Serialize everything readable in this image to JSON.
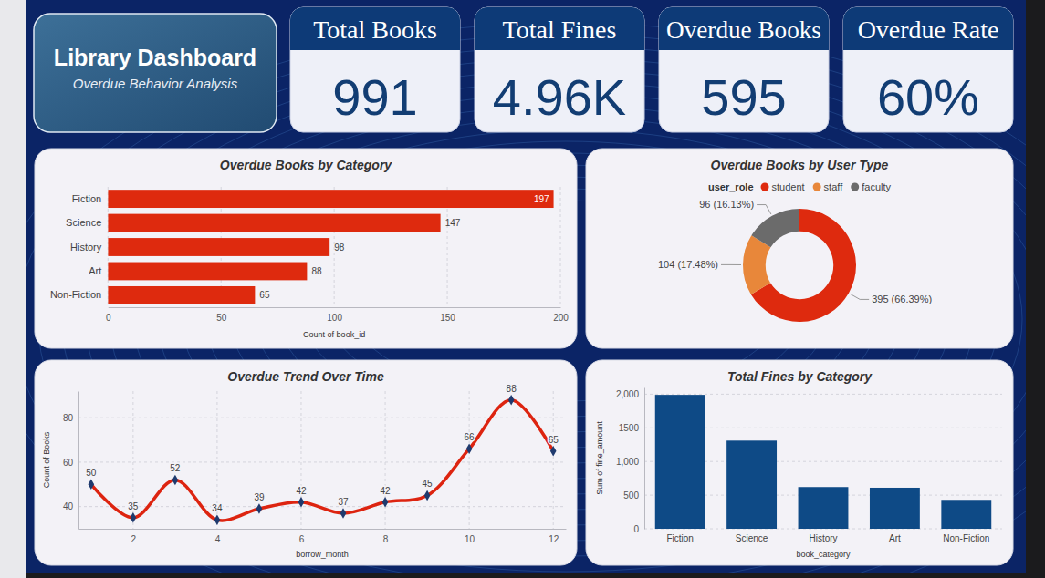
{
  "header": {
    "title": "Library Dashboard",
    "subtitle": "Overdue Behavior Analysis"
  },
  "kpis": [
    {
      "label": "Total Books",
      "value": "991"
    },
    {
      "label": "Total Fines",
      "value": "4.96K"
    },
    {
      "label": "Overdue Books",
      "value": "595"
    },
    {
      "label": "Overdue Rate",
      "value": "60%"
    }
  ],
  "chart_data": [
    {
      "type": "bar",
      "title": "Overdue Books by Category",
      "orientation": "horizontal",
      "categories": [
        "Fiction",
        "Science",
        "History",
        "Art",
        "Non-Fiction"
      ],
      "values": [
        197,
        147,
        98,
        88,
        65
      ],
      "color": "#de2a0e",
      "xlim": [
        0,
        200
      ],
      "xticks": [
        0,
        50,
        100,
        150,
        200
      ],
      "x_label": "Count of book_id",
      "grid": true,
      "data_labels": true
    },
    {
      "type": "donut",
      "title": "Overdue Books by User Type",
      "legend_title": "user_role",
      "categories": [
        "student",
        "staff",
        "faculty"
      ],
      "values": [
        395,
        104,
        96
      ],
      "value_labels": [
        "395 (66.39%)",
        "104 (17.48%)",
        "96 (16.13%)"
      ],
      "colors": [
        "#de2a0e",
        "#e8873a",
        "#6b6b6b"
      ],
      "legend": "top",
      "data_labels": true
    },
    {
      "type": "line",
      "title": "Overdue Trend Over Time",
      "x": [
        1,
        2,
        3,
        4,
        5,
        6,
        7,
        8,
        9,
        10,
        11,
        12
      ],
      "values": [
        50,
        35,
        52,
        34,
        39,
        42,
        37,
        42,
        45,
        66,
        88,
        65
      ],
      "x_label": "borrow_month",
      "y_label": "Count of Books",
      "xlim": [
        0.7,
        12.3
      ],
      "xticks": [
        2,
        4,
        6,
        8,
        10,
        12
      ],
      "ylim": [
        30,
        92
      ],
      "yticks": [
        40,
        60,
        80
      ],
      "color": "#dd2410",
      "marker": "diamond",
      "line_style": "smooth",
      "grid": true,
      "data_labels": true
    },
    {
      "type": "bar",
      "title": "Total Fines by Category",
      "categories": [
        "Fiction",
        "Science",
        "History",
        "Art",
        "Non-Fiction"
      ],
      "values": [
        1990,
        1310,
        620,
        610,
        430
      ],
      "color": "#0e4a86",
      "ylim": [
        0,
        2100
      ],
      "yticks": [
        0,
        500,
        {
          "value": 1000,
          "label": "1,000"
        },
        1500,
        {
          "value": 2000,
          "label": "2,000"
        }
      ],
      "x_label": "book_category",
      "y_label": "Sum of fine_amount",
      "grid": true,
      "data_labels": false
    }
  ]
}
